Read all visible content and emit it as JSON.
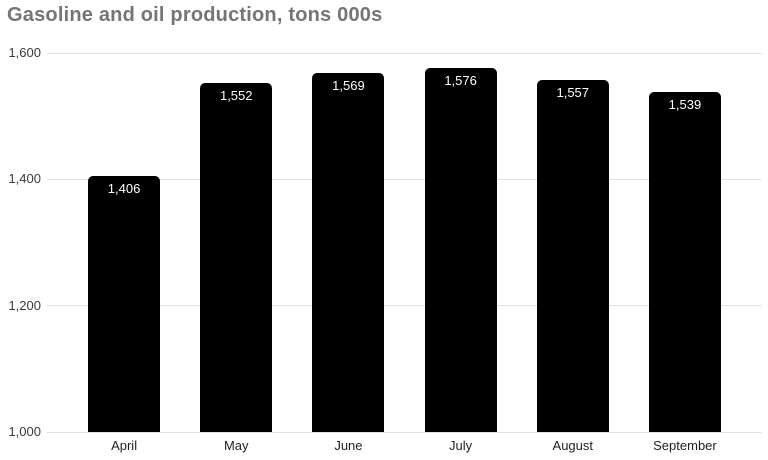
{
  "chart_data": {
    "type": "bar",
    "title": "Gasoline and oil production, tons 000s",
    "categories": [
      "April",
      "May",
      "June",
      "July",
      "August",
      "September"
    ],
    "values": [
      1406,
      1552,
      1569,
      1576,
      1557,
      1539
    ],
    "value_labels": [
      "1,406",
      "1,552",
      "1,569",
      "1,576",
      "1,557",
      "1,539"
    ],
    "xlabel": "",
    "ylabel": "",
    "ylim": [
      1000,
      1600
    ],
    "yticks": [
      {
        "value": 1000,
        "label": "1,000"
      },
      {
        "value": 1200,
        "label": "1,200"
      },
      {
        "value": 1400,
        "label": "1,400"
      },
      {
        "value": 1600,
        "label": "1,600"
      }
    ],
    "grid": "horizontal",
    "legend": "none",
    "colors": {
      "bar": "#000000",
      "bar_value_label": "#ffffff",
      "title": "#757575",
      "y_tick_label": "#3a3a3a",
      "x_tick_label": "#1f1f1f",
      "gridline": "#e2e2e2",
      "background": "#ffffff"
    }
  }
}
